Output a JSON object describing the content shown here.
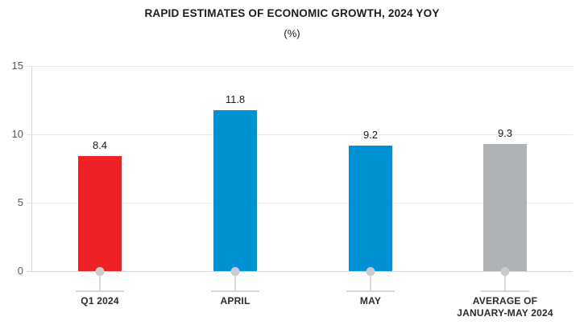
{
  "chart_data": {
    "type": "bar",
    "title": "RAPID ESTIMATES OF ECONOMIC GROWTH, 2024 YOY",
    "subtitle": "(%)",
    "categories": [
      "Q1 2024",
      "APRIL",
      "MAY",
      "AVERAGE OF\nJANUARY-MAY 2024"
    ],
    "values": [
      8.4,
      11.8,
      9.2,
      9.3
    ],
    "bar_colors": [
      "#ee2126",
      "#0090d4",
      "#0090d4",
      "#b0b3b6"
    ],
    "xlabel": "",
    "ylabel": "",
    "ylim": [
      0,
      15
    ],
    "yticks": [
      15,
      10,
      5,
      0
    ],
    "grid": "horizontal gridlines at 5, 10, 15",
    "legend": "none",
    "accent_colors": {
      "red": "#ee2126",
      "blue": "#0090d4",
      "gray": "#b0b3b6",
      "axis_gray": "#d9d9d9",
      "text_dark": "#1c1c1c",
      "tick_text": "#595959"
    }
  }
}
